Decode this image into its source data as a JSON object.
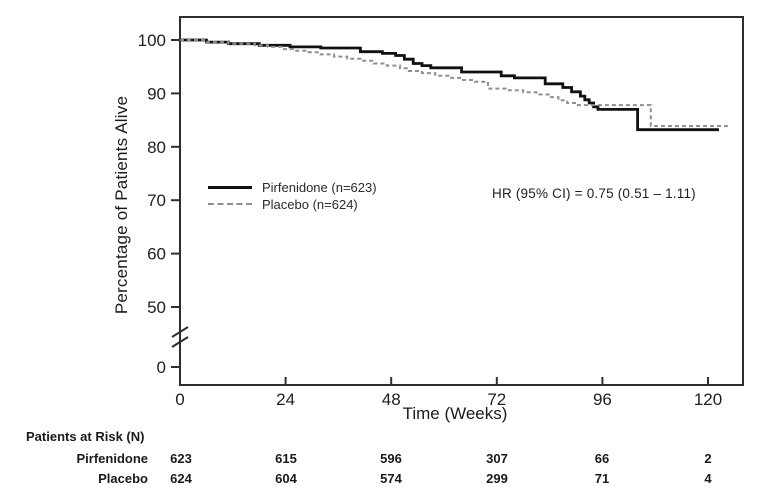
{
  "chart_data": {
    "type": "line",
    "subtype": "kaplan-meier-step-curves",
    "title": "",
    "xlabel": "Time (Weeks)",
    "ylabel": "Percentage of Patients Alive",
    "x_ticks": [
      0,
      24,
      48,
      72,
      96,
      120
    ],
    "y_ticks": [
      100,
      90,
      80,
      70,
      60,
      50,
      0
    ],
    "xlim": [
      0,
      128
    ],
    "ylim": [
      0,
      104
    ],
    "y_axis_break": "between 0 and 50",
    "grid": false,
    "legend_position": "inside-left-middle",
    "annotation": "HR (95% CI) = 0.75 (0.51 – 1.11)",
    "series": [
      {
        "name": "Pirfenidone (n=623)",
        "line_style": "solid",
        "color": "#111111",
        "end_week": 122.5,
        "steps": [
          [
            0,
            100
          ],
          [
            6,
            99.6
          ],
          [
            11,
            99.3
          ],
          [
            18,
            99.0
          ],
          [
            25,
            98.7
          ],
          [
            32,
            98.5
          ],
          [
            41,
            97.8
          ],
          [
            46,
            97.5
          ],
          [
            49,
            97.1
          ],
          [
            51,
            96.4
          ],
          [
            53,
            95.6
          ],
          [
            55,
            95.2
          ],
          [
            57,
            94.8
          ],
          [
            64,
            94.0
          ],
          [
            73,
            93.3
          ],
          [
            76,
            92.9
          ],
          [
            83,
            91.8
          ],
          [
            87,
            91.1
          ],
          [
            89,
            90.3
          ],
          [
            91,
            89.5
          ],
          [
            92,
            88.8
          ],
          [
            93,
            88.2
          ],
          [
            94,
            87.5
          ],
          [
            95,
            87.0
          ],
          [
            104,
            83.2
          ]
        ]
      },
      {
        "name": "Placebo (n=624)",
        "line_style": "dashed",
        "color": "#8f8f8f",
        "end_week": 124.5,
        "steps": [
          [
            0,
            100
          ],
          [
            6,
            99.6
          ],
          [
            11,
            99.3
          ],
          [
            17,
            99.0
          ],
          [
            20,
            98.7
          ],
          [
            23,
            98.3
          ],
          [
            26,
            98.0
          ],
          [
            29,
            97.7
          ],
          [
            32,
            97.3
          ],
          [
            35,
            96.9
          ],
          [
            38,
            96.5
          ],
          [
            41,
            96.1
          ],
          [
            44,
            95.6
          ],
          [
            47,
            95.2
          ],
          [
            50,
            94.7
          ],
          [
            52,
            94.2
          ],
          [
            55,
            93.8
          ],
          [
            58,
            93.3
          ],
          [
            61,
            92.9
          ],
          [
            64,
            92.5
          ],
          [
            67,
            92.2
          ],
          [
            70,
            90.9
          ],
          [
            74,
            90.6
          ],
          [
            78,
            90.2
          ],
          [
            81,
            89.8
          ],
          [
            84,
            89.3
          ],
          [
            86,
            88.7
          ],
          [
            88,
            88.2
          ],
          [
            90,
            87.8
          ],
          [
            107,
            83.9
          ]
        ]
      }
    ]
  },
  "risk_table": {
    "title": "Patients at Risk (N)",
    "time_points": [
      0,
      24,
      48,
      72,
      96,
      120
    ],
    "rows": [
      {
        "label": "Pirfenidone",
        "values": [
          "623",
          "615",
          "596",
          "307",
          "66",
          "2"
        ]
      },
      {
        "label": "Placebo",
        "values": [
          "624",
          "604",
          "574",
          "299",
          "71",
          "4"
        ]
      }
    ]
  }
}
